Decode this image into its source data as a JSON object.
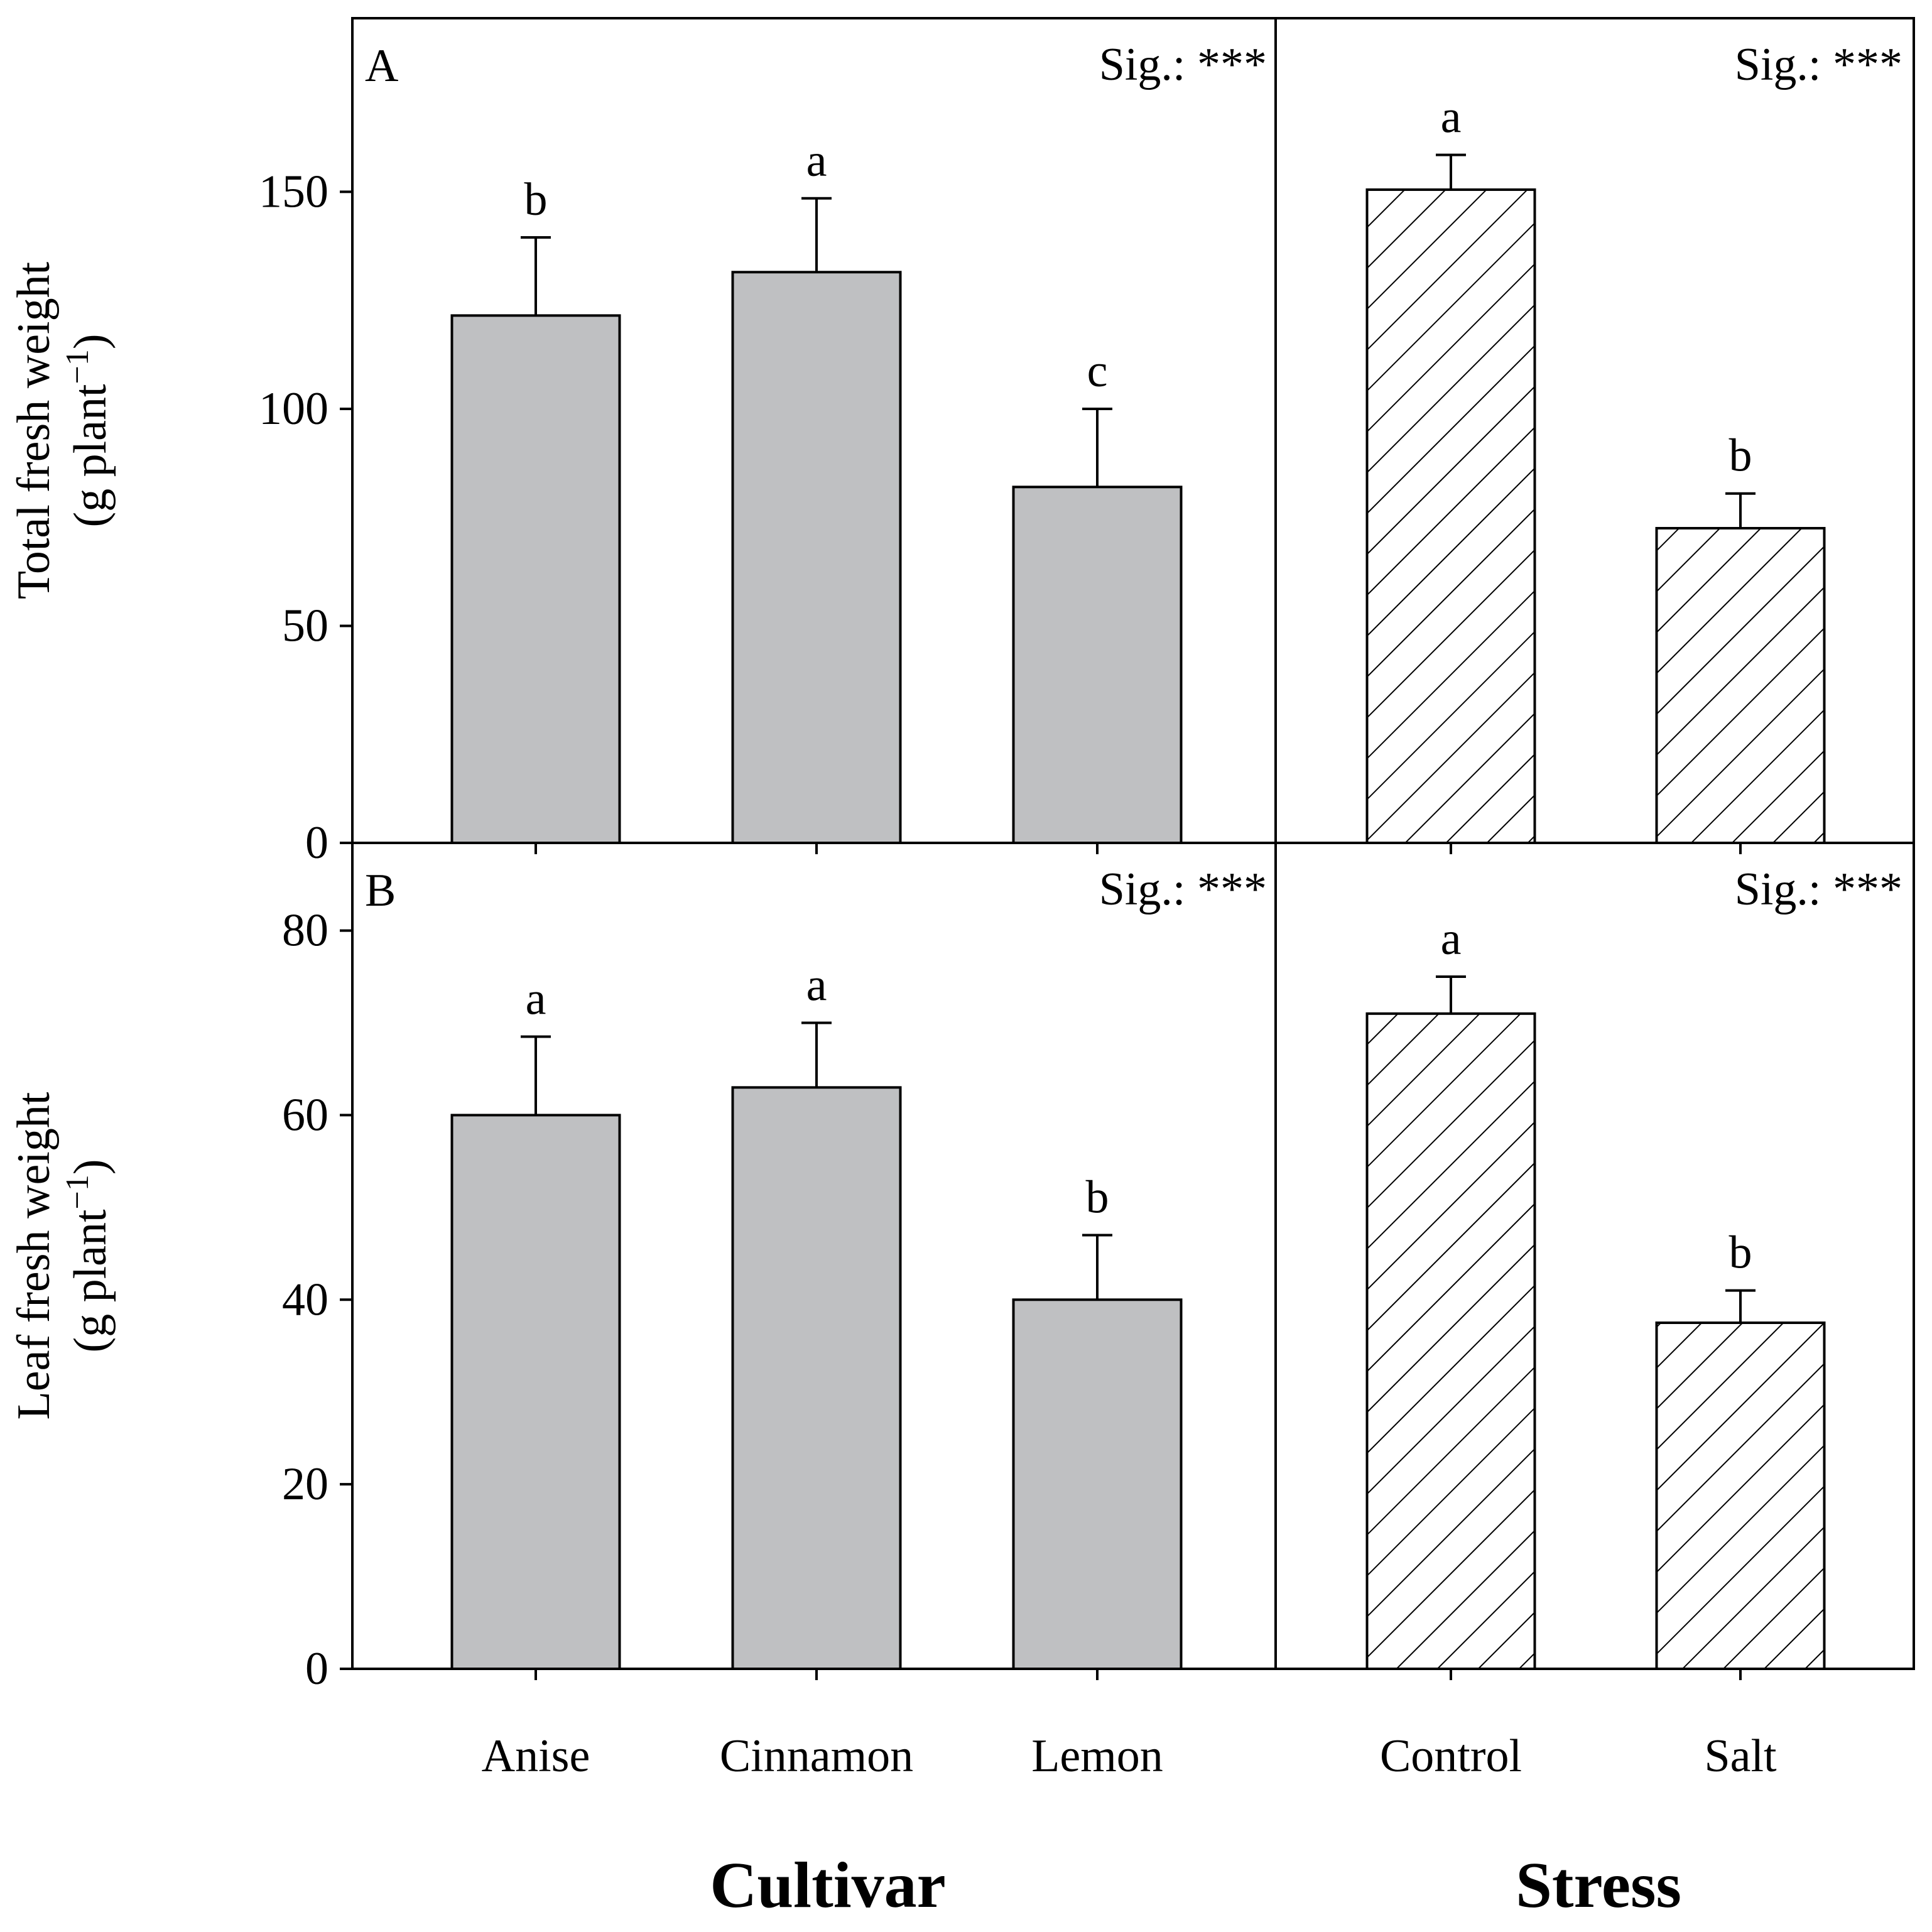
{
  "colors": {
    "bar_fill": "#bfc0c2",
    "stroke": "#000000",
    "background": "#ffffff"
  },
  "chart_data": [
    {
      "type": "bar",
      "panel": "A",
      "ylabel": "Total fresh weight",
      "ylabel_units": "(g plant",
      "ylabel_exponent": "−1",
      "ylabel_close": ")",
      "ylim": [
        0,
        190
      ],
      "yticks": [
        0,
        50,
        100,
        150
      ],
      "cultivar": {
        "sig": "Sig.: ***",
        "categories": [
          "Anise",
          "Cinnamon",
          "Lemon"
        ],
        "values": [
          121.5,
          131.5,
          82
        ],
        "errors": [
          18,
          17,
          18
        ],
        "letters": [
          "b",
          "a",
          "c"
        ]
      },
      "stress": {
        "sig": "Sig.: ***",
        "categories": [
          "Control",
          "Salt"
        ],
        "values": [
          150.5,
          72.5
        ],
        "errors": [
          8,
          8
        ],
        "letters": [
          "a",
          "b"
        ]
      }
    },
    {
      "type": "bar",
      "panel": "B",
      "ylabel": "Leaf fresh weight",
      "ylabel_units": "(g plant",
      "ylabel_exponent": "−1",
      "ylabel_close": ")",
      "ylim": [
        0,
        89.5
      ],
      "yticks": [
        0,
        20,
        40,
        60,
        80
      ],
      "cultivar": {
        "sig": "Sig.: ***",
        "categories": [
          "Anise",
          "Cinnamon",
          "Lemon"
        ],
        "values": [
          60,
          63,
          40
        ],
        "errors": [
          8.5,
          7,
          7
        ],
        "letters": [
          "a",
          "a",
          "b"
        ]
      },
      "stress": {
        "sig": "Sig.: ***",
        "categories": [
          "Control",
          "Salt"
        ],
        "values": [
          71,
          37.5
        ],
        "errors": [
          4,
          3.5
        ],
        "letters": [
          "a",
          "b"
        ]
      }
    }
  ],
  "xaxis": {
    "categories": [
      "Anise",
      "Cinnamon",
      "Lemon",
      "Control",
      "Salt"
    ],
    "group_titles": {
      "cultivar": "Cultivar",
      "stress": "Stress"
    }
  }
}
